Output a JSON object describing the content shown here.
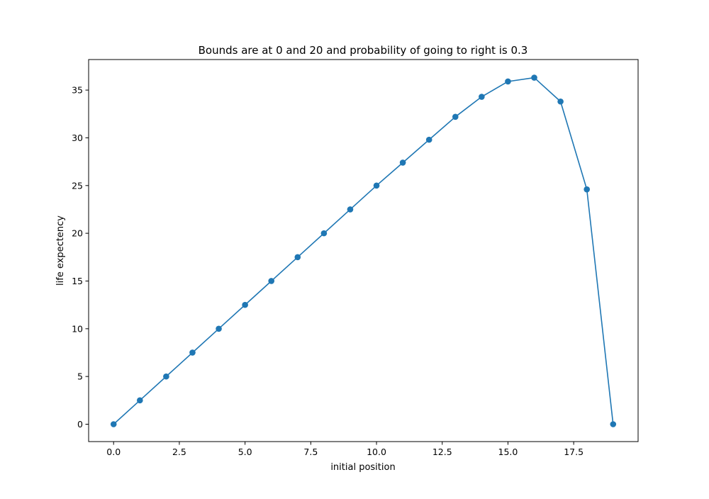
{
  "chart_data": {
    "type": "line",
    "title": "Bounds are at 0 and 20 and probability of going to right is 0.3",
    "xlabel": "initial position",
    "ylabel": "life expectency",
    "xlim": [
      -0.95,
      19.95
    ],
    "ylim": [
      -1.82,
      38.2
    ],
    "xticks": [
      0.0,
      2.5,
      5.0,
      7.5,
      10.0,
      12.5,
      15.0,
      17.5
    ],
    "xtick_labels": [
      "0.0",
      "2.5",
      "5.0",
      "7.5",
      "10.0",
      "12.5",
      "15.0",
      "17.5"
    ],
    "yticks": [
      0,
      5,
      10,
      15,
      20,
      25,
      30,
      35
    ],
    "ytick_labels": [
      "0",
      "5",
      "10",
      "15",
      "20",
      "25",
      "30",
      "35"
    ],
    "grid": false,
    "series": [
      {
        "color": "#1f77b4",
        "marker": "circle",
        "x": [
          0,
          1,
          2,
          3,
          4,
          5,
          6,
          7,
          8,
          9,
          10,
          11,
          12,
          13,
          14,
          15,
          16,
          17,
          18,
          19
        ],
        "y": [
          0.0,
          2.5,
          5.0,
          7.5,
          10.0,
          12.5,
          15.0,
          17.5,
          20.0,
          22.5,
          25.0,
          27.4,
          29.8,
          32.2,
          34.3,
          35.9,
          36.3,
          33.8,
          24.6,
          0.0
        ]
      }
    ]
  }
}
